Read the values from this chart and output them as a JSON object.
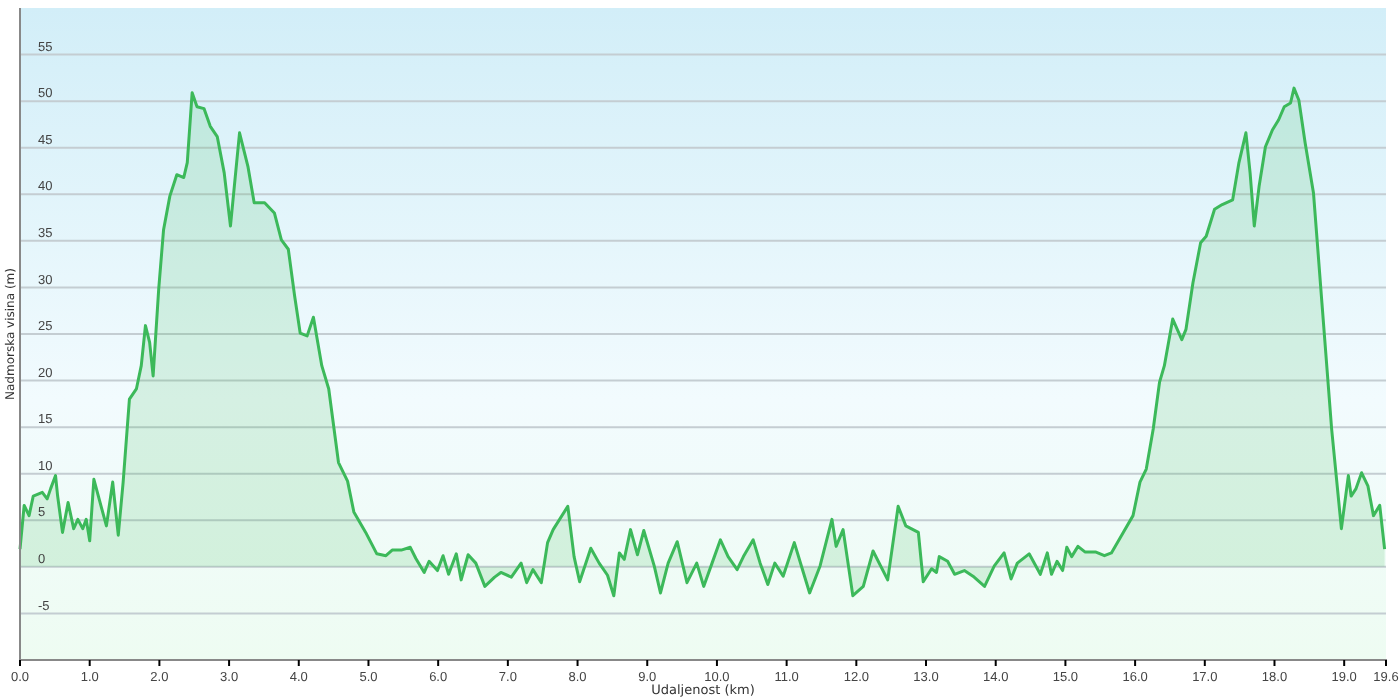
{
  "chart_data": {
    "type": "area",
    "xlabel": "Udaljenost  (km)",
    "ylabel": "Nadmorska visina (m)",
    "xlim": [
      0,
      19.6
    ],
    "ylim": [
      -10,
      60
    ],
    "xticks": [
      {
        "value": 0,
        "label": "0.0"
      },
      {
        "value": 1,
        "label": "1.0"
      },
      {
        "value": 2,
        "label": "2.0"
      },
      {
        "value": 3,
        "label": "3.0"
      },
      {
        "value": 4,
        "label": "4.0"
      },
      {
        "value": 5,
        "label": "5.0"
      },
      {
        "value": 6,
        "label": "6.0"
      },
      {
        "value": 7,
        "label": "7.0"
      },
      {
        "value": 8,
        "label": "8.0"
      },
      {
        "value": 9,
        "label": "9.0"
      },
      {
        "value": 10,
        "label": "10.0"
      },
      {
        "value": 11,
        "label": "11.0"
      },
      {
        "value": 12,
        "label": "12.0"
      },
      {
        "value": 13,
        "label": "13.0"
      },
      {
        "value": 14,
        "label": "14.0"
      },
      {
        "value": 15,
        "label": "15.0"
      },
      {
        "value": 16,
        "label": "16.0"
      },
      {
        "value": 17,
        "label": "17.0"
      },
      {
        "value": 18,
        "label": "18.0"
      },
      {
        "value": 19,
        "label": "19.0"
      },
      {
        "value": 19.6,
        "label": "19.6"
      }
    ],
    "yticks": [
      -5,
      0,
      5,
      10,
      15,
      20,
      25,
      30,
      35,
      40,
      45,
      50,
      55
    ],
    "grid": "y",
    "marker": "none",
    "line_style": "solid",
    "series": [
      {
        "color": "#3cb95a",
        "x": [
          0,
          0.06,
          0.13,
          0.19,
          0.32,
          0.39,
          0.44,
          0.51,
          0.54,
          0.61,
          0.69,
          0.77,
          0.83,
          0.9,
          0.95,
          1.0,
          1.06,
          1.16,
          1.24,
          1.33,
          1.41,
          1.48,
          1.57,
          1.67,
          1.74,
          1.8,
          1.86,
          1.91,
          1.99,
          2.06,
          2.15,
          2.25,
          2.35,
          2.4,
          2.47,
          2.54,
          2.64,
          2.73,
          2.83,
          2.93,
          3.02,
          3.15,
          3.27,
          3.36,
          3.51,
          3.65,
          3.75,
          3.85,
          3.94,
          4.02,
          4.12,
          4.21,
          4.33,
          4.43,
          4.57,
          4.7,
          4.79,
          4.96,
          5.12,
          5.25,
          5.34,
          5.47,
          5.6,
          5.68,
          5.8,
          5.87,
          5.99,
          6.07,
          6.15,
          6.26,
          6.33,
          6.43,
          6.54,
          6.67,
          6.81,
          6.9,
          7.05,
          7.19,
          7.27,
          7.36,
          7.48,
          7.57,
          7.65,
          7.86,
          7.95,
          8.03,
          8.19,
          8.31,
          8.43,
          8.52,
          8.6,
          8.67,
          8.76,
          8.86,
          8.95,
          9.1,
          9.19,
          9.3,
          9.43,
          9.57,
          9.71,
          9.81,
          9.93,
          10.05,
          10.16,
          10.29,
          10.38,
          10.52,
          10.62,
          10.73,
          10.83,
          10.95,
          11.11,
          11.24,
          11.33,
          11.48,
          11.65,
          11.71,
          11.81,
          11.95,
          12.1,
          12.24,
          12.45,
          12.6,
          12.71,
          12.89,
          12.96,
          13.08,
          13.15,
          13.19,
          13.31,
          13.41,
          13.55,
          13.69,
          13.84,
          13.98,
          14.12,
          14.22,
          14.31,
          14.48,
          14.64,
          14.74,
          14.8,
          14.88,
          14.96,
          15.02,
          15.09,
          15.18,
          15.28,
          15.43,
          15.56,
          15.66,
          15.83,
          15.97,
          16.07,
          16.16,
          16.26,
          16.35,
          16.42,
          16.54,
          16.67,
          16.73,
          16.83,
          16.94,
          17.02,
          17.14,
          17.25,
          17.4,
          17.49,
          17.59,
          17.65,
          17.71,
          17.78,
          17.87,
          17.97,
          18.06,
          18.14,
          18.23,
          18.28,
          18.35,
          18.44,
          18.56,
          18.68,
          18.82,
          18.96,
          19.06,
          19.1,
          19.17,
          19.25,
          19.34,
          19.42,
          19.51,
          19.58
        ],
        "values": [
          1.9,
          6.6,
          5.5,
          7.6,
          8.0,
          7.3,
          8.4,
          9.8,
          7.6,
          3.7,
          6.9,
          4.1,
          5.1,
          4.1,
          5.1,
          2.8,
          9.4,
          6.6,
          4.4,
          9.1,
          3.4,
          9.1,
          18.0,
          19.1,
          21.6,
          25.9,
          24.1,
          20.5,
          29.8,
          36.2,
          39.8,
          42.1,
          41.8,
          43.4,
          50.9,
          49.4,
          49.2,
          47.3,
          46.2,
          42.3,
          36.6,
          46.6,
          43.0,
          39.1,
          39.1,
          38.0,
          35.1,
          34.1,
          29.1,
          25.1,
          24.8,
          26.8,
          21.6,
          19.1,
          11.2,
          9.2,
          5.9,
          3.7,
          1.4,
          1.2,
          1.8,
          1.8,
          2.1,
          0.9,
          -0.6,
          0.6,
          -0.4,
          1.2,
          -0.8,
          1.4,
          -1.4,
          1.3,
          0.4,
          -2.1,
          -1.1,
          -0.6,
          -1.1,
          0.4,
          -1.7,
          -0.3,
          -1.7,
          2.6,
          4.0,
          6.5,
          1.1,
          -1.6,
          2.0,
          0.4,
          -0.9,
          -3.1,
          1.5,
          0.8,
          4.0,
          1.3,
          3.9,
          0.1,
          -2.8,
          0.4,
          2.7,
          -1.7,
          0.4,
          -2.1,
          0.4,
          2.9,
          1.1,
          -0.3,
          1.1,
          2.9,
          0.4,
          -1.9,
          0.4,
          -1.0,
          2.6,
          -0.6,
          -2.8,
          0.1,
          5.1,
          2.2,
          4.0,
          -3.1,
          -2.1,
          1.7,
          -1.4,
          6.5,
          4.4,
          3.7,
          -1.6,
          -0.2,
          -0.6,
          1.1,
          0.6,
          -0.8,
          -0.4,
          -1.1,
          -2.1,
          0.1,
          1.5,
          -1.3,
          0.4,
          1.4,
          -0.8,
          1.5,
          -0.8,
          0.6,
          -0.4,
          2.1,
          1.1,
          2.2,
          1.6,
          1.6,
          1.2,
          1.5,
          3.7,
          5.5,
          9.1,
          10.5,
          14.8,
          19.8,
          21.6,
          26.6,
          24.4,
          25.5,
          30.5,
          34.8,
          35.5,
          38.4,
          38.9,
          39.4,
          43.4,
          46.6,
          42.3,
          36.6,
          40.9,
          45.1,
          46.9,
          48.0,
          49.4,
          49.8,
          51.4,
          50.1,
          45.5,
          40.1,
          28.4,
          14.8,
          4.1,
          9.8,
          7.6,
          8.4,
          10.1,
          8.7,
          5.5,
          6.6,
          1.9
        ]
      }
    ]
  }
}
